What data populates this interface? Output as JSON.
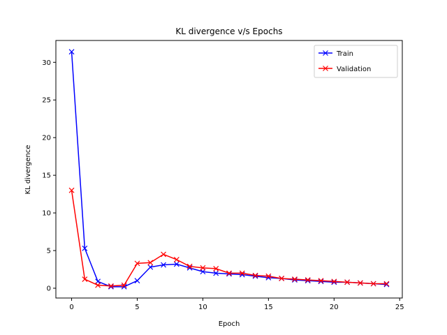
{
  "chart_data": {
    "type": "line",
    "title": "KL divergence v/s Epochs",
    "xlabel": "Epoch",
    "ylabel": "KL divergence",
    "xlim": [
      -1.2,
      25.2
    ],
    "ylim": [
      -1.3,
      32.9
    ],
    "xticks": [
      0,
      5,
      10,
      15,
      20,
      25
    ],
    "yticks": [
      0,
      5,
      10,
      15,
      20,
      25,
      30
    ],
    "grid": false,
    "legend_position": "top-right",
    "marker": "x",
    "x": [
      0,
      1,
      2,
      3,
      4,
      5,
      6,
      7,
      8,
      9,
      10,
      11,
      12,
      13,
      14,
      15,
      16,
      17,
      18,
      19,
      20,
      21,
      22,
      23,
      24
    ],
    "series": [
      {
        "name": "Train",
        "color": "#0000ff",
        "values": [
          31.4,
          5.3,
          0.9,
          0.2,
          0.2,
          1.0,
          2.8,
          3.1,
          3.2,
          2.7,
          2.2,
          2.0,
          1.9,
          1.8,
          1.6,
          1.4,
          1.3,
          1.1,
          1.0,
          0.9,
          0.8,
          0.8,
          0.7,
          0.6,
          0.5
        ]
      },
      {
        "name": "Validation",
        "color": "#ff0000",
        "values": [
          13.0,
          1.2,
          0.4,
          0.3,
          0.4,
          3.3,
          3.4,
          4.5,
          3.8,
          2.9,
          2.7,
          2.6,
          2.0,
          2.0,
          1.7,
          1.6,
          1.3,
          1.2,
          1.1,
          1.0,
          0.9,
          0.8,
          0.7,
          0.6,
          0.6
        ]
      }
    ]
  }
}
